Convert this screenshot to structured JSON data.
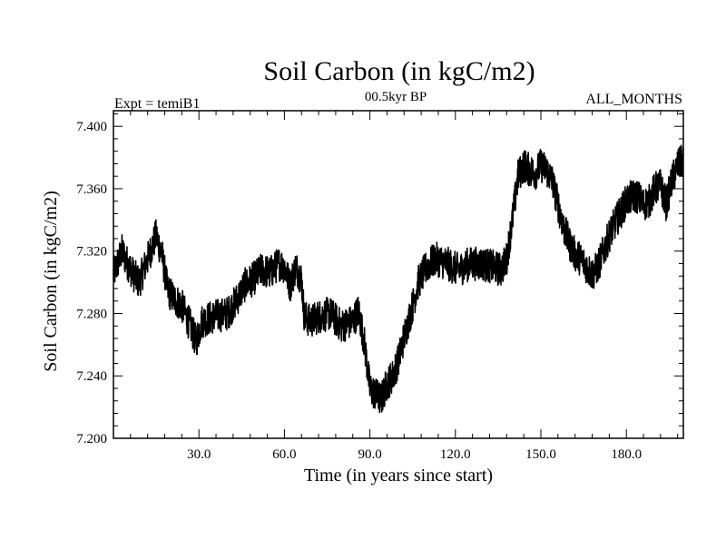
{
  "chart_data": {
    "type": "line",
    "title": "Soil Carbon (in kgC/m2)",
    "subtitle": "00.5kyr BP",
    "left_label": "Expt = temiB1",
    "right_label": "ALL_MONTHS",
    "xlabel": "Time (in years since start)",
    "ylabel": "Soil Carbon (in kgC/m2)",
    "xlim": [
      0,
      200
    ],
    "ylim": [
      7.2,
      7.41
    ],
    "x_ticks": [
      30,
      60,
      90,
      120,
      150,
      180
    ],
    "x_tick_labels": [
      "30.0",
      "60.0",
      "90.0",
      "120.0",
      "150.0",
      "180.0"
    ],
    "y_ticks": [
      7.2,
      7.24,
      7.28,
      7.32,
      7.36,
      7.4
    ],
    "y_tick_labels": [
      "7.200",
      "7.240",
      "7.280",
      "7.320",
      "7.360",
      "7.400"
    ],
    "line_color": "#000000",
    "series": [
      {
        "name": "Soil Carbon",
        "x": [
          0,
          3,
          5,
          7,
          9,
          12,
          15,
          17,
          19,
          21,
          24,
          27,
          29,
          31,
          35,
          40,
          43,
          46,
          49,
          52,
          55,
          58,
          60,
          62,
          64,
          66,
          67,
          69,
          72,
          76,
          80,
          84,
          86,
          88,
          90,
          92,
          94,
          96,
          98,
          100,
          102,
          105,
          107,
          110,
          113,
          117,
          121,
          125,
          129,
          133,
          136,
          138,
          140,
          142,
          144,
          146,
          148,
          150,
          152,
          154,
          156,
          158,
          160,
          162,
          164,
          166,
          168,
          170,
          172,
          174,
          176,
          178,
          180,
          182,
          184,
          186,
          188,
          190,
          192,
          194,
          196,
          198,
          200
        ],
        "values": [
          7.305,
          7.32,
          7.312,
          7.305,
          7.3,
          7.315,
          7.33,
          7.318,
          7.295,
          7.29,
          7.285,
          7.272,
          7.262,
          7.275,
          7.278,
          7.28,
          7.288,
          7.298,
          7.302,
          7.308,
          7.306,
          7.312,
          7.31,
          7.298,
          7.31,
          7.302,
          7.278,
          7.275,
          7.278,
          7.28,
          7.272,
          7.275,
          7.282,
          7.262,
          7.232,
          7.228,
          7.225,
          7.235,
          7.24,
          7.25,
          7.265,
          7.285,
          7.3,
          7.31,
          7.315,
          7.312,
          7.308,
          7.312,
          7.312,
          7.31,
          7.308,
          7.315,
          7.34,
          7.368,
          7.375,
          7.372,
          7.37,
          7.375,
          7.372,
          7.365,
          7.35,
          7.335,
          7.325,
          7.318,
          7.315,
          7.31,
          7.305,
          7.31,
          7.32,
          7.33,
          7.338,
          7.345,
          7.352,
          7.355,
          7.355,
          7.35,
          7.352,
          7.36,
          7.362,
          7.35,
          7.365,
          7.375,
          7.378
        ]
      }
    ],
    "noise_amplitude": 0.011
  }
}
